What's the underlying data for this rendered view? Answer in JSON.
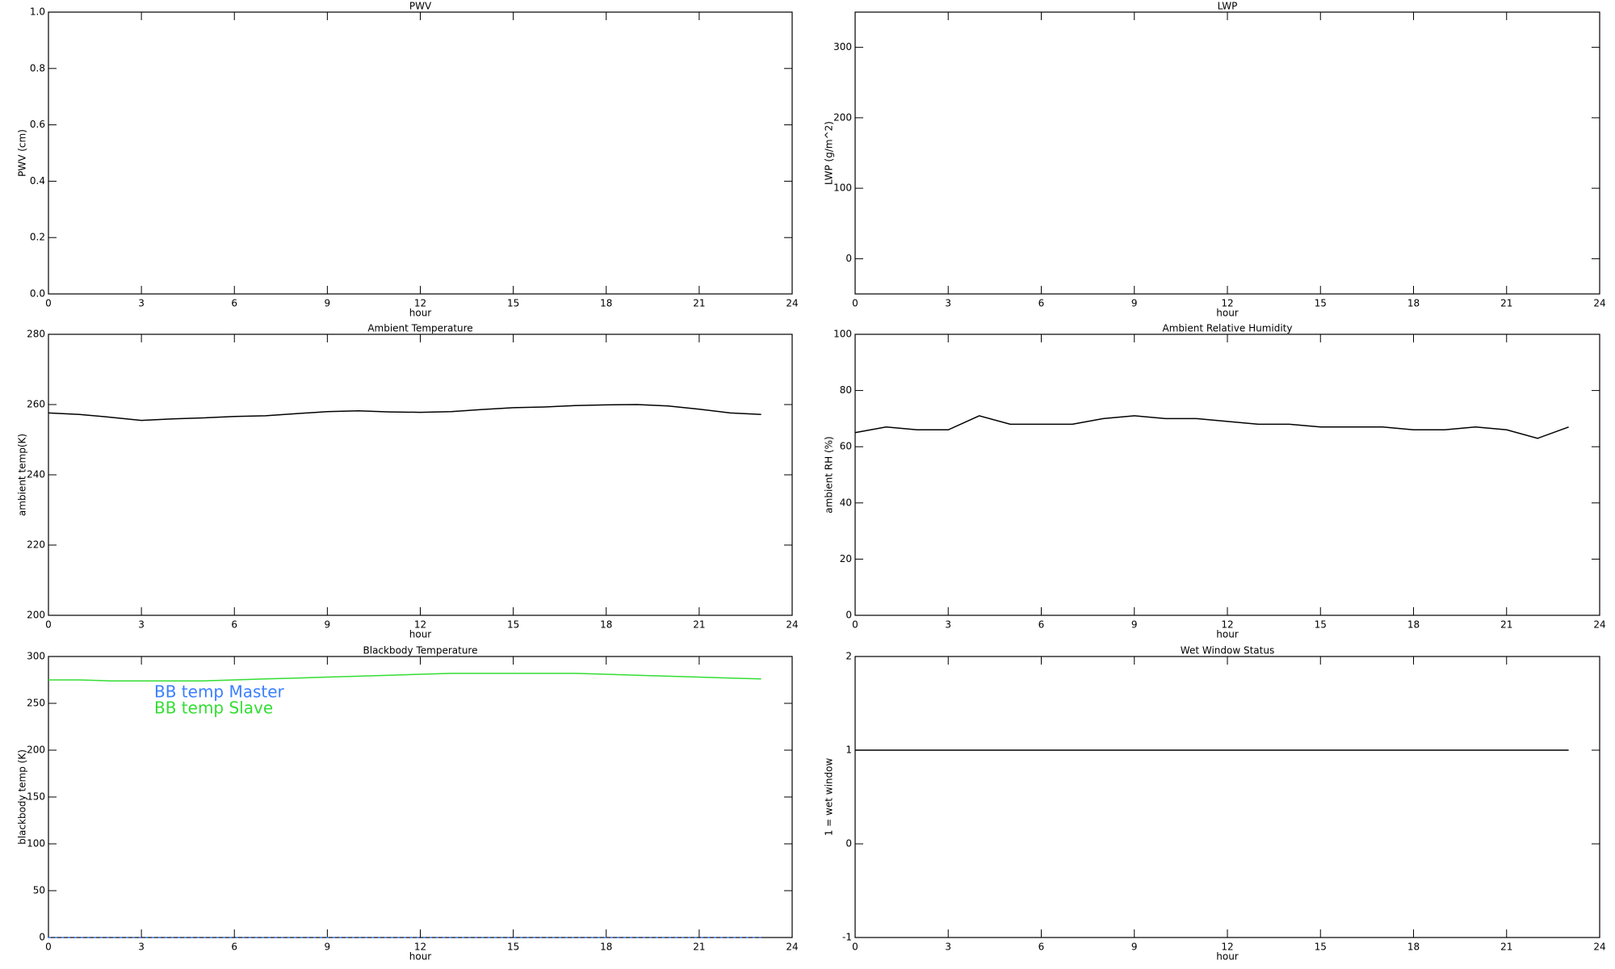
{
  "chart_data": [
    {
      "type": "line",
      "title": "PWV",
      "xlabel": "hour",
      "ylabel": "PWV (cm)",
      "xlim": [
        0,
        24
      ],
      "xticks": [
        0,
        3,
        6,
        9,
        12,
        15,
        18,
        21,
        24
      ],
      "ylim": [
        0,
        1
      ],
      "yticks": [
        {
          "value": 0,
          "label": "0.0"
        },
        0.2,
        0.4,
        0.6,
        0.8,
        {
          "value": 1,
          "label": "1.0"
        }
      ]
    },
    {
      "type": "line",
      "title": "LWP",
      "xlabel": "hour",
      "ylabel": "LWP (g/m^2)",
      "xlim": [
        0,
        24
      ],
      "xticks": [
        0,
        3,
        6,
        9,
        12,
        15,
        18,
        21,
        24
      ],
      "ylim": [
        -50,
        350
      ],
      "yticks": [
        0,
        100,
        200,
        300
      ]
    },
    {
      "type": "line",
      "title": "Ambient Temperature",
      "xlabel": "hour",
      "ylabel": "ambient temp(K)",
      "xlim": [
        0,
        24
      ],
      "xticks": [
        0,
        3,
        6,
        9,
        12,
        15,
        18,
        21,
        24
      ],
      "ylim": [
        200,
        280
      ],
      "yticks": [
        200,
        220,
        240,
        260,
        280
      ],
      "x": [
        0,
        1,
        2,
        3,
        4,
        5,
        6,
        7,
        8,
        9,
        10,
        11,
        12,
        13,
        14,
        15,
        16,
        17,
        18,
        19,
        20,
        21,
        22,
        23
      ],
      "series": [
        {
          "color": "#000000",
          "values": [
            257.6,
            257.2,
            256.4,
            255.5,
            255.9,
            256.2,
            256.6,
            256.8,
            257.4,
            258.0,
            258.2,
            257.9,
            257.8,
            258.0,
            258.6,
            259.1,
            259.3,
            259.7,
            259.9,
            260.0,
            259.6,
            258.7,
            257.6,
            257.2
          ]
        }
      ]
    },
    {
      "type": "line",
      "title": "Ambient Relative Humidity",
      "xlabel": "hour",
      "ylabel": "ambient RH (%)",
      "xlim": [
        0,
        24
      ],
      "xticks": [
        0,
        3,
        6,
        9,
        12,
        15,
        18,
        21,
        24
      ],
      "ylim": [
        0,
        100
      ],
      "yticks": [
        0,
        20,
        40,
        60,
        80,
        100
      ],
      "x": [
        0,
        1,
        2,
        3,
        4,
        5,
        6,
        7,
        8,
        9,
        10,
        11,
        12,
        13,
        14,
        15,
        16,
        17,
        18,
        19,
        20,
        21,
        22,
        23
      ],
      "series": [
        {
          "color": "#000000",
          "values": [
            65,
            67,
            66,
            66,
            71,
            68,
            68,
            68,
            70,
            71,
            70,
            70,
            69,
            68,
            68,
            67,
            67,
            67,
            66,
            66,
            67,
            66,
            63,
            67
          ]
        }
      ]
    },
    {
      "type": "line",
      "title": "Blackbody Temperature",
      "xlabel": "hour",
      "ylabel": "blackbody temp (K)",
      "xlim": [
        0,
        24
      ],
      "xticks": [
        0,
        3,
        6,
        9,
        12,
        15,
        18,
        21,
        24
      ],
      "ylim": [
        0,
        300
      ],
      "yticks": [
        0,
        50,
        100,
        150,
        200,
        250,
        300
      ],
      "x": [
        0,
        1,
        2,
        3,
        4,
        5,
        6,
        7,
        8,
        9,
        10,
        11,
        12,
        13,
        14,
        15,
        16,
        17,
        18,
        19,
        20,
        21,
        22,
        23
      ],
      "series": [
        {
          "name": "BB temp Master",
          "color": "#3a7fff",
          "values": [
            0,
            0,
            0,
            0,
            0,
            0,
            0,
            0,
            0,
            0,
            0,
            0,
            0,
            0,
            0,
            0,
            0,
            0,
            0,
            0,
            0,
            0,
            0,
            0
          ]
        },
        {
          "name": "BB temp Slave",
          "color": "#33dd33",
          "values": [
            275,
            275,
            274,
            274,
            274,
            274,
            275,
            276,
            277,
            278,
            279,
            280,
            281,
            282,
            282,
            282,
            282,
            282,
            281,
            280,
            279,
            278,
            277,
            276
          ]
        }
      ]
    },
    {
      "type": "line",
      "title": "Wet Window Status",
      "xlabel": "hour",
      "ylabel": "1 = wet window",
      "xlim": [
        0,
        24
      ],
      "xticks": [
        0,
        3,
        6,
        9,
        12,
        15,
        18,
        21,
        24
      ],
      "ylim": [
        -1,
        2
      ],
      "yticks": [
        -1,
        0,
        1,
        2
      ],
      "x": [
        0,
        23
      ],
      "series": [
        {
          "color": "#000000",
          "values": [
            1,
            1
          ]
        }
      ]
    }
  ]
}
